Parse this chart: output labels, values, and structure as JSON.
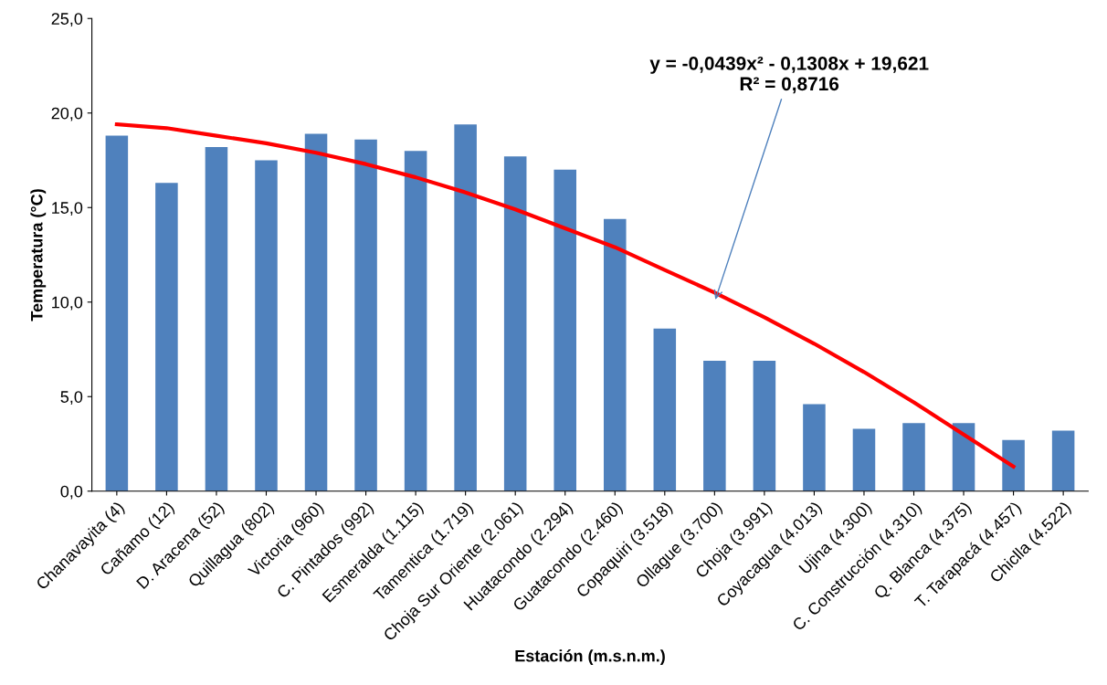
{
  "chart_data": {
    "type": "bar",
    "xlabel": "Estación (m.s.n.m.)",
    "ylabel": "Temperatura (°C)",
    "categories": [
      "Chanavayita (4)",
      "Cañamo (12)",
      "D. Aracena (52)",
      "Quillagua (802)",
      "Victoria (960)",
      "C. Pintados (992)",
      "Esmeralda (1.115)",
      "Tamentica (1.719)",
      "Choja Sur Oriente (2.061)",
      "Huatacondo (2.294)",
      "Guatacondo (2.460)",
      "Copaquiri (3.518)",
      "Ollague (3.700)",
      "Choja (3.991)",
      "Coyacagua (4.013)",
      "Ujina (4.300)",
      "C. Construcción (4.310)",
      "Q. Blanca (4.375)",
      "T. Tarapacá (4.457)",
      "Chiclla (4.522)"
    ],
    "series": [
      {
        "color": "#4f81bd",
        "values": [
          18.8,
          16.3,
          18.2,
          17.5,
          18.9,
          18.6,
          18.0,
          19.4,
          17.7,
          17.0,
          14.4,
          8.6,
          6.9,
          6.9,
          4.6,
          3.3,
          3.6,
          3.6,
          2.7,
          3.2
        ]
      },
      {
        "type": "line",
        "color": "#ff0000",
        "values": [
          19.4,
          19.2,
          18.8,
          18.4,
          17.9,
          17.3,
          16.6,
          15.8,
          14.9,
          13.9,
          12.9,
          11.7,
          10.5,
          9.2,
          7.8,
          6.3,
          4.7,
          3.0,
          1.3,
          null
        ]
      }
    ],
    "ylim": [
      0,
      25
    ],
    "yticks": [
      {
        "value": 0,
        "label": "0,0"
      },
      {
        "value": 5,
        "label": "5,0"
      },
      {
        "value": 10,
        "label": "10,0"
      },
      {
        "value": 15,
        "label": "15,0"
      },
      {
        "value": 20,
        "label": "20,0"
      },
      {
        "value": 25,
        "label": "25,0"
      }
    ],
    "annotations": [
      {
        "text": "y = -0,0439x² - 0,1308x + 19,621\nR² = 0,8716",
        "x": "Ollague (3.700)",
        "y": 10
      }
    ],
    "grid": false,
    "legend": false
  }
}
